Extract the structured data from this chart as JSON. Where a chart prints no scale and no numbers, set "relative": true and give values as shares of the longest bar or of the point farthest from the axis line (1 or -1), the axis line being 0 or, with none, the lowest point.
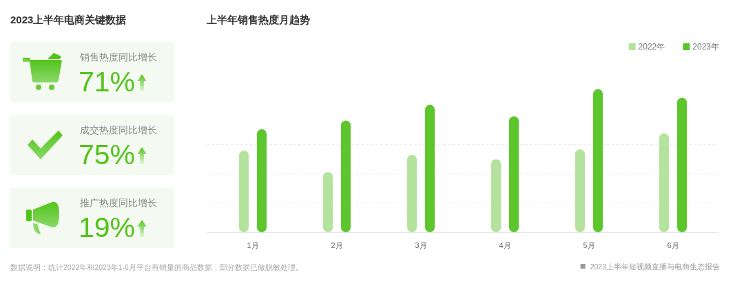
{
  "chart_data": [
    {
      "type": "other",
      "title": "2023上半年电商关键数据",
      "annotations": [
        "销售热度同比增长",
        "71%",
        "成交热度同比增长",
        "75%",
        "推广热度同比增长",
        "19%"
      ]
    },
    {
      "type": "bar",
      "title": "上半年销售热度月趋势",
      "categories": [
        "1月",
        "2月",
        "3月",
        "4月",
        "5月",
        "6月"
      ],
      "relative": true,
      "series": [
        {
          "name": "2022年",
          "color": "#b3e39c",
          "values": [
            0.57,
            0.42,
            0.54,
            0.51,
            0.58,
            0.69
          ]
        },
        {
          "name": "2023年",
          "color": "#5cc62c",
          "values": [
            0.72,
            0.78,
            0.89,
            0.81,
            1,
            0.94
          ]
        }
      ],
      "legend": "top right",
      "grid": true,
      "annotations": [
        "数据说明：统计2022年和2023年1-6月平台有销量的商品数据，部分数据已做脱敏处理。",
        "2023上半年短视频直播与电商生态报告"
      ]
    }
  ]
}
